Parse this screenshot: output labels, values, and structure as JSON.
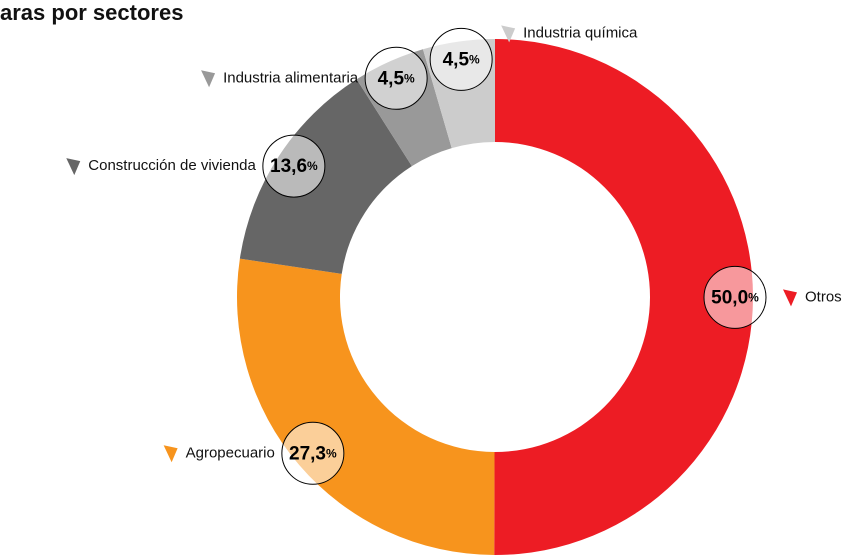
{
  "chart_data": {
    "type": "donut",
    "title": "aras por sectores",
    "categories": [
      "Otros",
      "Agropecuario",
      "Construcción de vivienda",
      "Industria alimentaria",
      "Industria química"
    ],
    "values": [
      50.0,
      27.3,
      13.6,
      4.5,
      4.5
    ],
    "value_labels": [
      "50,0%",
      "27,3%",
      "13,6%",
      "4,5%",
      "4,5%"
    ],
    "colors": [
      "#ed1c24",
      "#f7941d",
      "#666666",
      "#999999",
      "#cccccc"
    ]
  }
}
